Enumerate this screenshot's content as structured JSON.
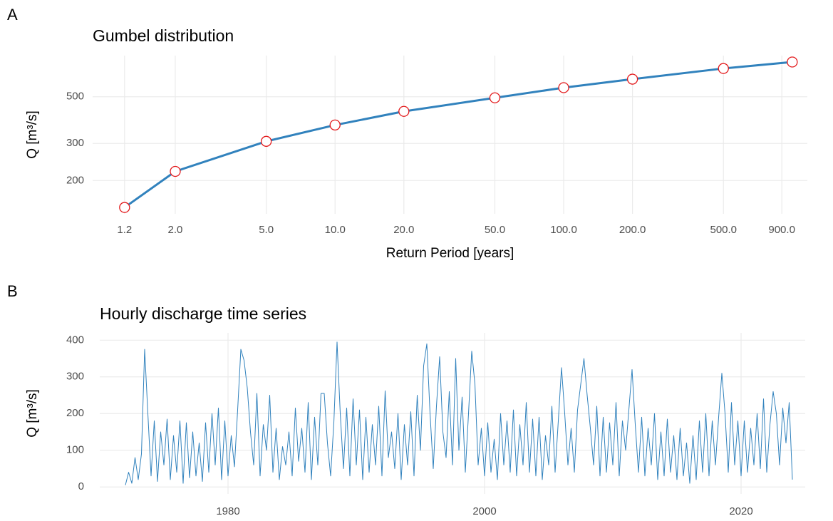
{
  "chart_data": [
    {
      "type": "line",
      "tag": "A",
      "title": "Gumbel distribution",
      "xlabel": "Return Period [years]",
      "ylabel": "Q [m³/s]",
      "xlog": true,
      "ylog": true,
      "grid": true,
      "markers": true,
      "marker_color": "#e31a1c",
      "xlim": [
        0.87,
        1164
      ],
      "ylim": [
        139,
        784
      ],
      "xticks": [
        1.2,
        {
          "value": 2,
          "label": "2.0"
        },
        {
          "value": 5,
          "label": "5.0"
        },
        {
          "value": 10,
          "label": "10.0"
        },
        {
          "value": 20,
          "label": "20.0"
        },
        {
          "value": 50,
          "label": "50.0"
        },
        {
          "value": 100,
          "label": "100.0"
        },
        {
          "value": 200,
          "label": "200.0"
        },
        {
          "value": 500,
          "label": "500.0"
        },
        {
          "value": 900,
          "label": "900.0"
        }
      ],
      "yticks": [
        200,
        300,
        500
      ],
      "series": [
        {
          "color": "#3182bd",
          "x": [
            1.2,
            2,
            5,
            10,
            20,
            50,
            100,
            200,
            500,
            1000
          ],
          "values": [
            149,
            221,
            307,
            367,
            426,
            494,
            552,
            606,
            681,
            731
          ]
        }
      ]
    },
    {
      "type": "line",
      "tag": "B",
      "title": "Hourly discharge time series",
      "ylabel": "Q [m³/s]",
      "xlog": false,
      "ylog": false,
      "grid": true,
      "markers": false,
      "xlim": [
        1970,
        2025
      ],
      "ylim": [
        -19,
        420
      ],
      "xticks": [
        1980,
        2000,
        2020
      ],
      "yticks": [
        0,
        100,
        200,
        300,
        400
      ],
      "series": [
        {
          "color": "#3182bd",
          "x": [
            1972,
            1972.25,
            1972.5,
            1972.75,
            1973,
            1973.25,
            1973.5,
            1973.75,
            1974,
            1974.25,
            1974.5,
            1974.75,
            1975,
            1975.25,
            1975.5,
            1975.75,
            1976,
            1976.25,
            1976.5,
            1976.75,
            1977,
            1977.25,
            1977.5,
            1977.75,
            1978,
            1978.25,
            1978.5,
            1978.75,
            1979,
            1979.25,
            1979.5,
            1979.75,
            1980,
            1980.25,
            1980.5,
            1980.75,
            1981,
            1981.25,
            1981.5,
            1981.75,
            1982,
            1982.25,
            1982.5,
            1982.75,
            1983,
            1983.25,
            1983.5,
            1983.75,
            1984,
            1984.25,
            1984.5,
            1984.75,
            1985,
            1985.25,
            1985.5,
            1985.75,
            1986,
            1986.25,
            1986.5,
            1986.75,
            1987,
            1987.25,
            1987.5,
            1987.75,
            1988,
            1988.25,
            1988.5,
            1988.75,
            1989,
            1989.25,
            1989.5,
            1989.75,
            1990,
            1990.25,
            1990.5,
            1990.75,
            1991,
            1991.25,
            1991.5,
            1991.75,
            1992,
            1992.25,
            1992.5,
            1992.75,
            1993,
            1993.25,
            1993.5,
            1993.75,
            1994,
            1994.25,
            1994.5,
            1994.75,
            1995,
            1995.25,
            1995.5,
            1995.75,
            1996,
            1996.25,
            1996.5,
            1996.75,
            1997,
            1997.25,
            1997.5,
            1997.75,
            1998,
            1998.25,
            1998.5,
            1998.75,
            1999,
            1999.25,
            1999.5,
            1999.75,
            2000,
            2000.25,
            2000.5,
            2000.75,
            2001,
            2001.25,
            2001.5,
            2001.75,
            2002,
            2002.25,
            2002.5,
            2002.75,
            2003,
            2003.25,
            2003.5,
            2003.75,
            2004,
            2004.25,
            2004.5,
            2004.75,
            2005,
            2005.25,
            2005.5,
            2005.75,
            2006,
            2006.25,
            2006.5,
            2006.75,
            2007,
            2007.25,
            2007.5,
            2007.75,
            2008,
            2008.25,
            2008.5,
            2008.75,
            2009,
            2009.25,
            2009.5,
            2009.75,
            2010,
            2010.25,
            2010.5,
            2010.75,
            2011,
            2011.25,
            2011.5,
            2011.75,
            2012,
            2012.25,
            2012.5,
            2012.75,
            2013,
            2013.25,
            2013.5,
            2013.75,
            2014,
            2014.25,
            2014.5,
            2014.75,
            2015,
            2015.25,
            2015.5,
            2015.75,
            2016,
            2016.25,
            2016.5,
            2016.75,
            2017,
            2017.25,
            2017.5,
            2017.75,
            2018,
            2018.25,
            2018.5,
            2018.75,
            2019,
            2019.25,
            2019.5,
            2019.75,
            2020,
            2020.25,
            2020.5,
            2020.75,
            2021,
            2021.25,
            2021.5,
            2021.75,
            2022,
            2022.25,
            2022.5,
            2022.75,
            2023,
            2023.25,
            2023.5,
            2023.75,
            2024
          ],
          "values": [
            5,
            40,
            10,
            80,
            20,
            90,
            375,
            200,
            30,
            180,
            15,
            150,
            60,
            185,
            20,
            140,
            40,
            180,
            10,
            175,
            25,
            150,
            30,
            120,
            15,
            175,
            40,
            200,
            60,
            215,
            20,
            180,
            30,
            140,
            55,
            210,
            375,
            345,
            270,
            150,
            60,
            255,
            30,
            170,
            100,
            250,
            40,
            160,
            20,
            110,
            60,
            150,
            30,
            215,
            70,
            160,
            40,
            230,
            20,
            190,
            60,
            255,
            255,
            120,
            30,
            175,
            395,
            200,
            50,
            215,
            30,
            240,
            60,
            210,
            20,
            190,
            40,
            170,
            60,
            220,
            30,
            262,
            80,
            150,
            50,
            200,
            20,
            170,
            60,
            205,
            30,
            250,
            100,
            330,
            390,
            200,
            50,
            220,
            355,
            150,
            80,
            260,
            60,
            350,
            100,
            245,
            40,
            200,
            370,
            280,
            60,
            160,
            30,
            175,
            40,
            130,
            20,
            200,
            60,
            180,
            40,
            210,
            30,
            170,
            60,
            230,
            40,
            185,
            30,
            190,
            20,
            140,
            60,
            220,
            40,
            180,
            325,
            200,
            60,
            160,
            40,
            210,
            280,
            350,
            250,
            160,
            60,
            220,
            30,
            190,
            40,
            175,
            60,
            230,
            30,
            180,
            100,
            210,
            320,
            170,
            40,
            190,
            30,
            160,
            60,
            200,
            20,
            150,
            30,
            185,
            40,
            140,
            20,
            160,
            30,
            120,
            10,
            140,
            20,
            180,
            40,
            200,
            30,
            180,
            60,
            190,
            310,
            200,
            40,
            230,
            60,
            180,
            30,
            180,
            40,
            160,
            60,
            200,
            50,
            240,
            40,
            170,
            260,
            200,
            60,
            215,
            120,
            230,
            20
          ]
        }
      ]
    }
  ]
}
